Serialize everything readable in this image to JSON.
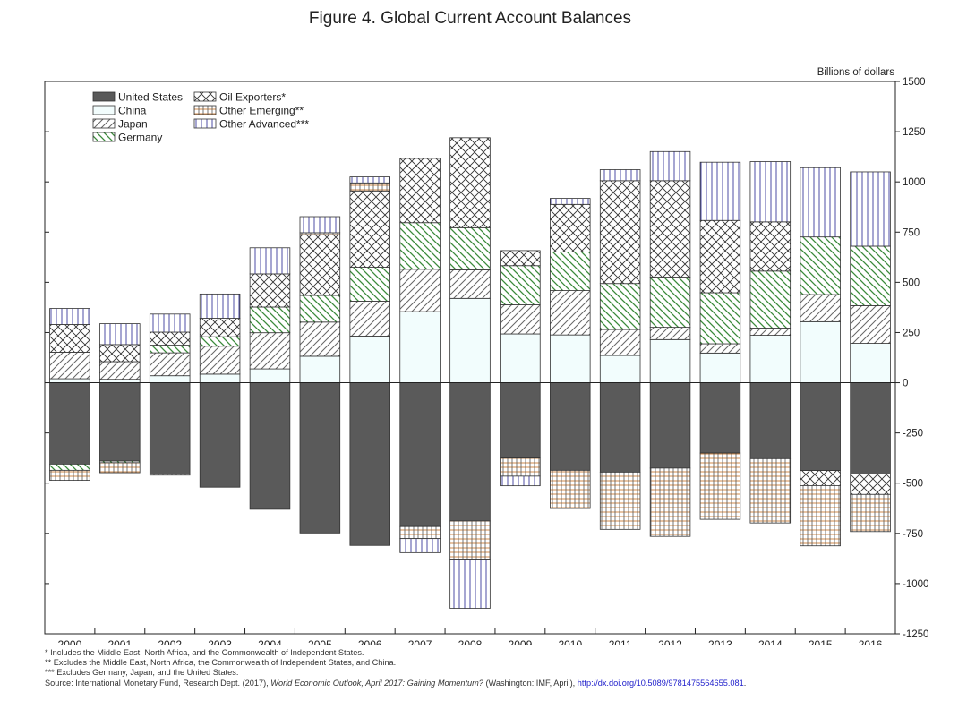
{
  "figure_title": "Figure 4.  Global Current Account Balances",
  "colors": {
    "us": "#5a5a5a",
    "china": "#f2fdfd",
    "japan_line": "#666666",
    "germany_line": "#3a8a3a",
    "oil_line": "#333333",
    "other_emerging_line": "#d08a4a",
    "other_advanced_line": "#3a3a9a"
  },
  "chart_data": {
    "type": "bar",
    "stacked": true,
    "title": "Figure 4.  Global Current Account Balances",
    "ylabel": "Billions of dollars",
    "ylim": [
      -1250,
      1500
    ],
    "yticks": [
      1500,
      1250,
      1000,
      750,
      500,
      250,
      0,
      -250,
      -500,
      -750,
      -1000,
      -1250
    ],
    "ytick_labels": [
      "1500",
      "1250",
      "1000",
      "750",
      "500",
      "250",
      "0",
      "-250",
      "-500",
      "-750",
      "-1000",
      "-1250"
    ],
    "categories": [
      "2000",
      "2001",
      "2002",
      "2003",
      "2004",
      "2005",
      "2006",
      "2007",
      "2008",
      "2009",
      "2010",
      "2011",
      "2012",
      "2013",
      "2014",
      "2015",
      "2016"
    ],
    "legend_position": "top-left",
    "series": [
      {
        "key": "us",
        "name": "United States",
        "values": [
          -405,
          -390,
          -455,
          -520,
          -630,
          -748,
          -810,
          -716,
          -688,
          -375,
          -436,
          -445,
          -425,
          -350,
          -378,
          -437,
          -454
        ]
      },
      {
        "key": "china",
        "name": "China",
        "values": [
          20,
          17,
          35,
          43,
          69,
          132,
          232,
          354,
          420,
          243,
          238,
          136,
          215,
          148,
          236,
          304,
          196
        ]
      },
      {
        "key": "japan",
        "name": "Japan",
        "values": [
          132,
          88,
          114,
          139,
          180,
          170,
          174,
          211,
          142,
          145,
          221,
          129,
          61,
          46,
          36,
          135,
          188
        ]
      },
      {
        "key": "germany",
        "name": "Germany",
        "values": [
          -31,
          -8,
          38,
          47,
          128,
          133,
          169,
          232,
          210,
          195,
          192,
          229,
          250,
          254,
          284,
          287,
          296
        ]
      },
      {
        "key": "oil",
        "name": "Oil Exporters*",
        "values": [
          138,
          85,
          65,
          92,
          165,
          302,
          380,
          320,
          448,
          75,
          237,
          512,
          480,
          360,
          245,
          -75,
          -102
        ]
      },
      {
        "key": "other_emerging",
        "name": "Other Emerging**",
        "values": [
          -50,
          -50,
          -5,
          0,
          0,
          10,
          40,
          -60,
          -190,
          -90,
          -190,
          -285,
          -340,
          -330,
          -320,
          -300,
          -185
        ]
      },
      {
        "key": "other_advanced",
        "name": "Other Advanced***",
        "values": [
          80,
          104,
          90,
          121,
          130,
          80,
          30,
          -70,
          -245,
          -48,
          30,
          55,
          145,
          290,
          300,
          345,
          370
        ]
      }
    ]
  },
  "notes": {
    "line1": "*  Includes the Middle East, North Africa, and the Commonwealth of Independent States.",
    "line2": "**  Excludes the Middle East, North Africa, the Commonwealth of Independent States, and China.",
    "line3": "*** Excludes Germany, Japan, and the United States.",
    "source_prefix": "Source:  International Monetary Fund, Research Dept. (2017), ",
    "source_italic": "World Economic Outlook, April 2017:  Gaining Momentum?",
    "source_mid": " (Washington:  IMF, April), ",
    "source_link": "http://dx.doi.org/10.5089/9781475564655.081",
    "source_end": "."
  }
}
